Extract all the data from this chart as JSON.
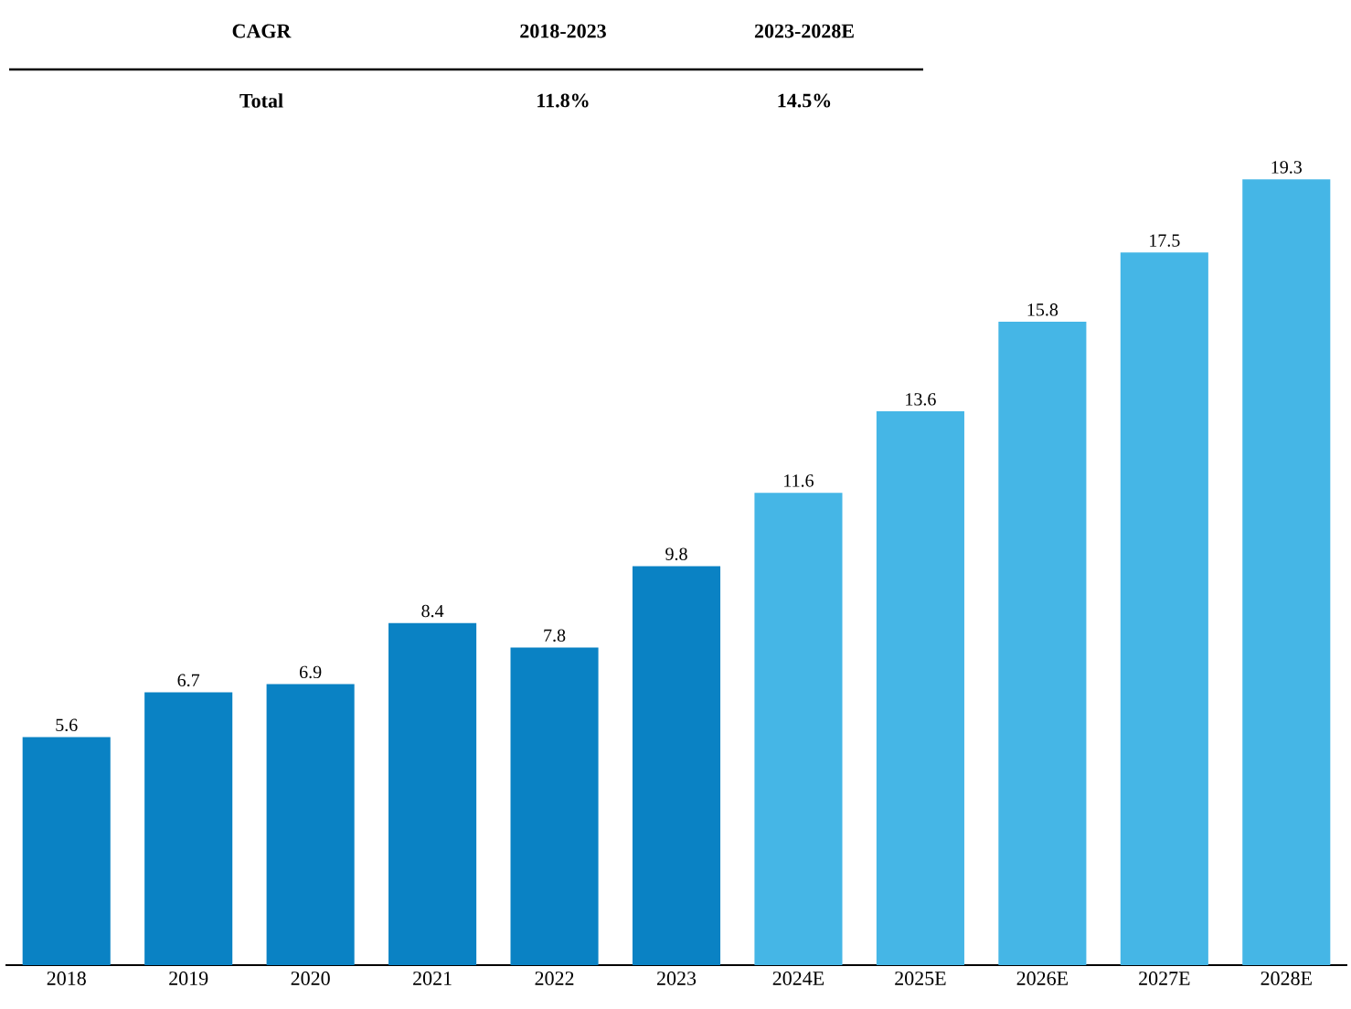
{
  "chart_data": {
    "type": "bar",
    "categories": [
      "2018",
      "2019",
      "2020",
      "2021",
      "2022",
      "2023",
      "2024E",
      "2025E",
      "2026E",
      "2027E",
      "2028E"
    ],
    "values": [
      5.6,
      6.7,
      6.9,
      8.4,
      7.8,
      9.8,
      11.6,
      13.6,
      15.8,
      17.5,
      19.3
    ],
    "colors": [
      "#0a82c4",
      "#0a82c4",
      "#0a82c4",
      "#0a82c4",
      "#0a82c4",
      "#0a82c4",
      "#45b6e6",
      "#45b6e6",
      "#45b6e6",
      "#45b6e6",
      "#45b6e6"
    ],
    "data_labels": true,
    "annotations": [
      "CAGR",
      "2018-2023",
      "2023-2028E",
      "Total",
      "11.8%",
      "14.5%"
    ]
  }
}
